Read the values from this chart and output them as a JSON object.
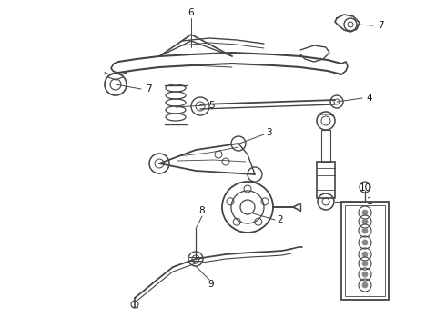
{
  "bg_color": "#ffffff",
  "line_color": "#444444",
  "label_color": "#111111",
  "fig_width": 4.9,
  "fig_height": 3.6,
  "dpi": 100
}
